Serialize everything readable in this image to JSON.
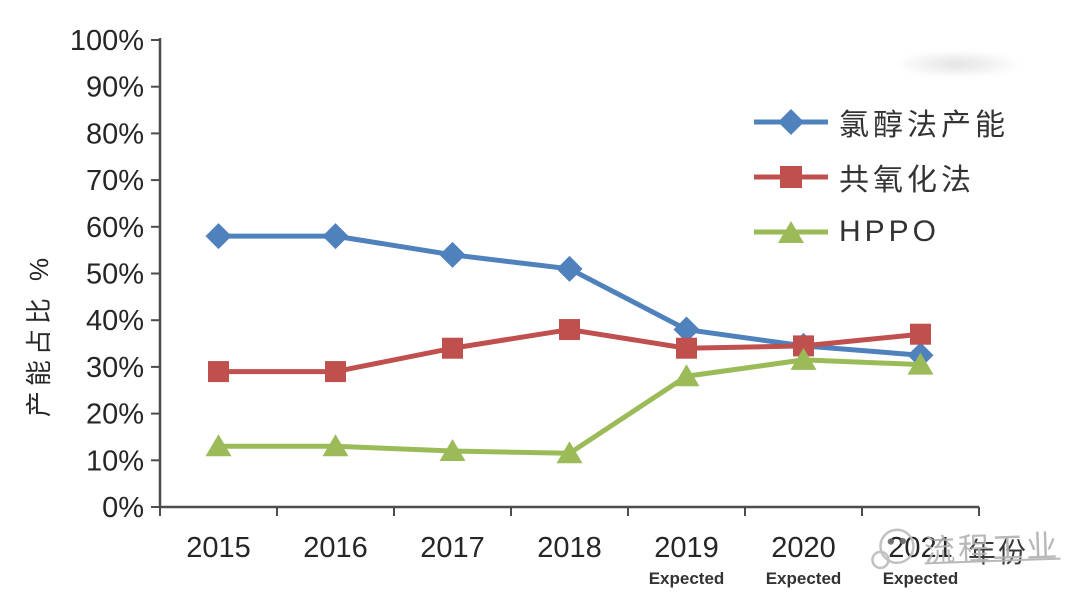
{
  "page": {
    "background": "#ffffff"
  },
  "chart_data": {
    "type": "line",
    "title": "",
    "ylabel": "产能占比 %",
    "xlabel": "年份",
    "categories": [
      "2015",
      "2016",
      "2017",
      "2018",
      "2019",
      "2020",
      "2021"
    ],
    "category_sublabels": [
      "",
      "",
      "",
      "",
      "Expected",
      "Expected",
      "Expected"
    ],
    "y_ticks": [
      "0%",
      "10%",
      "20%",
      "30%",
      "40%",
      "50%",
      "60%",
      "70%",
      "80%",
      "90%",
      "100%"
    ],
    "ylim": [
      0,
      100
    ],
    "grid": false,
    "legend_position": "upper-right",
    "axis_color": "#4d4d4d",
    "tick_label_color": "#262626",
    "series": [
      {
        "name": "氯醇法产能",
        "marker": "diamond",
        "color": "#4F81BD",
        "values": [
          58,
          58,
          54,
          51,
          38,
          34.5,
          32.5
        ]
      },
      {
        "name": "共氧化法",
        "marker": "square",
        "color": "#C0504D",
        "values": [
          29,
          29,
          34,
          38,
          34,
          34.5,
          37
        ]
      },
      {
        "name": "HPPO",
        "marker": "triangle",
        "color": "#9BBB59",
        "values": [
          13,
          13,
          12,
          11.5,
          28,
          31.5,
          30.5
        ]
      }
    ]
  },
  "watermark": {
    "text": "流程工业",
    "color": "#b2b2b2"
  }
}
